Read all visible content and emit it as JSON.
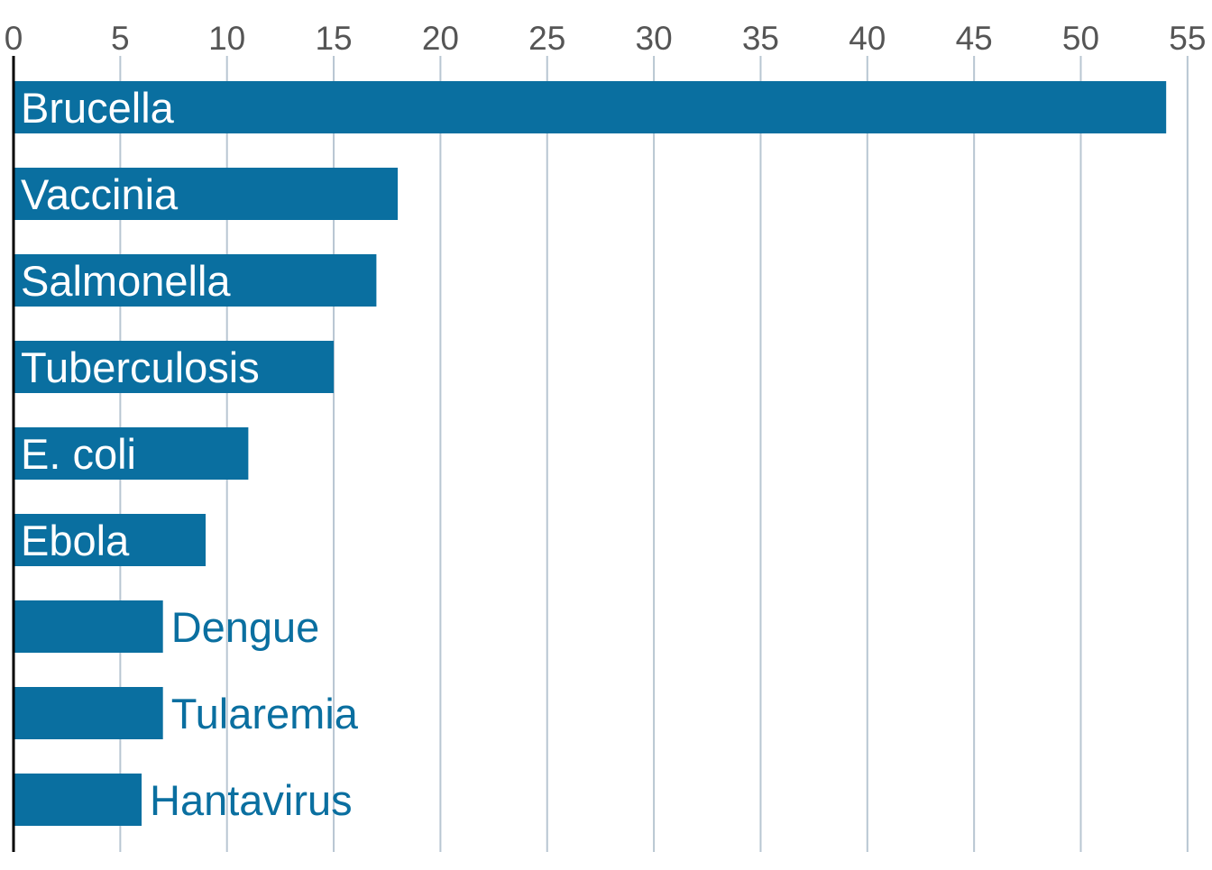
{
  "chart_data": {
    "type": "bar",
    "orientation": "horizontal",
    "title": "",
    "xlabel": "",
    "ylabel": "",
    "xlim": [
      0,
      55
    ],
    "x_ticks": [
      0,
      5,
      10,
      15,
      20,
      25,
      30,
      35,
      40,
      45,
      50,
      55
    ],
    "grid": true,
    "categories": [
      "Brucella",
      "Vaccinia",
      "Salmonella",
      "Tuberculosis",
      "E. coli",
      "Ebola",
      "Dengue",
      "Tularemia",
      "Hantavirus"
    ],
    "values": [
      54,
      18,
      17,
      15,
      11,
      9,
      7,
      7,
      6
    ]
  },
  "colors": {
    "bar": "#0a6fa0",
    "grid": "#b8c6d2",
    "axis": "#000000",
    "tick_text": "#555555",
    "label_inside": "#ffffff",
    "label_outside": "#0a6fa0"
  }
}
